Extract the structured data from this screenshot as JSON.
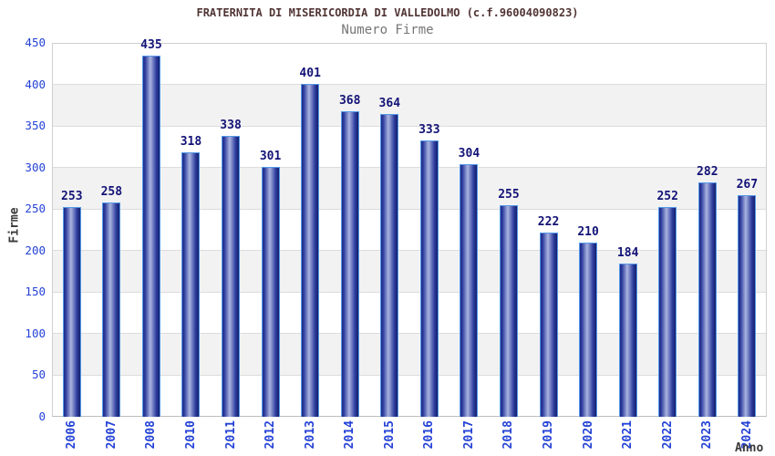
{
  "header": {
    "title": "FRATERNITA DI MISERICORDIA DI VALLEDOLMO (c.f.96004090823)",
    "subtitle": "Numero Firme"
  },
  "chart_data": {
    "type": "bar",
    "title": "FRATERNITA DI MISERICORDIA DI VALLEDOLMO (c.f.96004090823)",
    "subtitle": "Numero Firme",
    "xlabel": "Anno",
    "ylabel": "Firme",
    "categories": [
      "2006",
      "2007",
      "2008",
      "2010",
      "2011",
      "2012",
      "2013",
      "2014",
      "2015",
      "2016",
      "2017",
      "2018",
      "2019",
      "2020",
      "2021",
      "2022",
      "2023",
      "2024"
    ],
    "values": [
      253,
      258,
      435,
      318,
      338,
      301,
      401,
      368,
      364,
      333,
      304,
      255,
      222,
      210,
      184,
      252,
      282,
      267
    ],
    "ylim": [
      0,
      450
    ],
    "ytick_step": 50,
    "yticks": [
      450,
      400,
      350,
      300,
      250,
      200,
      150,
      100,
      50,
      0
    ],
    "grid": true,
    "legend": false,
    "plot_bands_alternating": [
      "#ffffff",
      "#f2f2f2"
    ],
    "colors": {
      "bar_dark": "#1d2b87",
      "bar_mid": "#2e3d9e",
      "bar_light": "#aab4e0",
      "bar_border": "#5599e8",
      "value_label": "#131377",
      "axis_tick_label": "#2442d6",
      "axis_title": "#3a3a3a",
      "title": "#513434",
      "subtitle": "#757575",
      "gridline": "#dcdcdc",
      "plot_border": "#cfcfcf"
    }
  }
}
